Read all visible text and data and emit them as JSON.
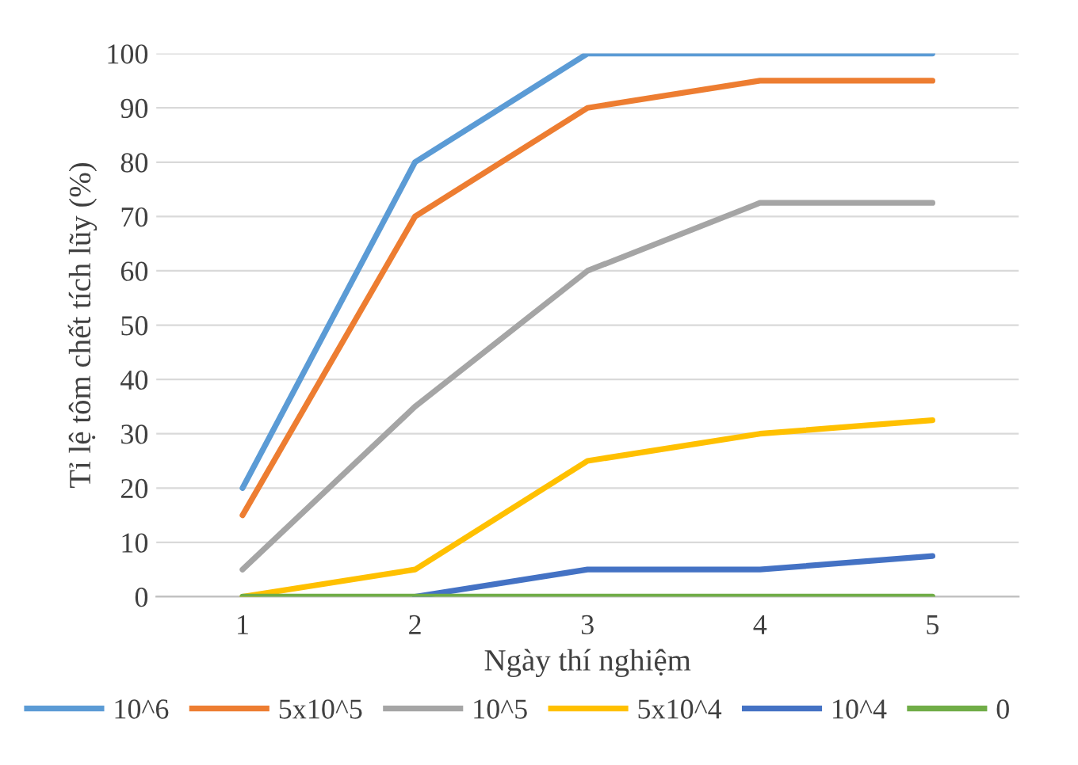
{
  "chart_data": {
    "type": "line",
    "xlabel": "Ngày thí nghiệm",
    "ylabel": "Tỉ lệ tôm chết tích lũy (%)",
    "categories": [
      "1",
      "2",
      "3",
      "4",
      "5"
    ],
    "series": [
      {
        "name": "10^6",
        "color": "#5b9bd5",
        "values": [
          20,
          80,
          100,
          100,
          100
        ]
      },
      {
        "name": "5x10^5",
        "color": "#ed7d31",
        "values": [
          15,
          70,
          90,
          95,
          95
        ]
      },
      {
        "name": "10^5",
        "color": "#a5a5a5",
        "values": [
          5,
          35,
          60,
          72.5,
          72.5
        ]
      },
      {
        "name": "5x10^4",
        "color": "#ffc000",
        "values": [
          0,
          5,
          25,
          30,
          32.5
        ]
      },
      {
        "name": "10^4",
        "color": "#4472c4",
        "values": [
          null,
          0,
          5,
          5,
          7.5
        ]
      },
      {
        "name": "0",
        "color": "#70ad47",
        "values": [
          0,
          0,
          0,
          0,
          0
        ]
      }
    ],
    "ylim": [
      0,
      100
    ],
    "yticks": [
      0,
      10,
      20,
      30,
      40,
      50,
      60,
      70,
      80,
      90,
      100
    ],
    "grid": "y",
    "legend": "bottom",
    "marker": "none",
    "line_style": "solid"
  }
}
